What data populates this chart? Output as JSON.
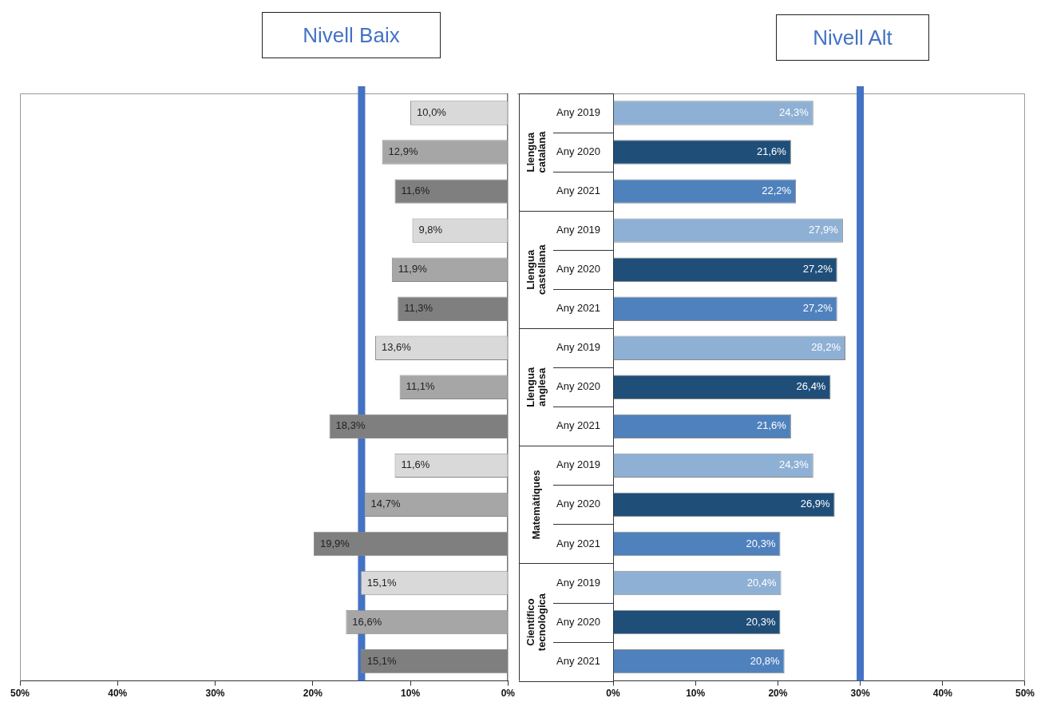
{
  "chart_data": [
    {
      "type": "bar",
      "orientation": "horizontal",
      "title": "Nivell Baix",
      "tick_labels": "x",
      "grid": false,
      "values": [
        10.0,
        12.9,
        11.6,
        9.8,
        11.9,
        11.3,
        13.6,
        11.1,
        18.3,
        11.6,
        14.7,
        19.9,
        15.1,
        16.6,
        15.1
      ],
      "value_labels": [
        "10,0%",
        "12,9%",
        "11,6%",
        "9,8%",
        "11,9%",
        "11,3%",
        "13,6%",
        "11,1%",
        "18,3%",
        "11,6%",
        "14,7%",
        "19,9%",
        "15,1%",
        "16,6%",
        "15,1%"
      ],
      "colors": [
        "#d9d9d9",
        "#a6a6a6",
        "#7f7f7f",
        "#d9d9d9",
        "#a6a6a6",
        "#7f7f7f",
        "#d9d9d9",
        "#a6a6a6",
        "#7f7f7f",
        "#d9d9d9",
        "#a6a6a6",
        "#7f7f7f",
        "#d9d9d9",
        "#a6a6a6",
        "#7f7f7f"
      ],
      "xlim": [
        50,
        0
      ],
      "xticks": [
        {
          "value": 50,
          "label": "50%"
        },
        {
          "value": 40,
          "label": "40%"
        },
        {
          "value": 30,
          "label": "30%"
        },
        {
          "value": 20,
          "label": "20%"
        },
        {
          "value": 10,
          "label": "10%"
        },
        {
          "value": 0,
          "label": "0%"
        }
      ],
      "ref_lines": [
        {
          "axis": "x",
          "value": 15,
          "color": "#4472c4"
        }
      ]
    },
    {
      "type": "bar",
      "orientation": "horizontal",
      "title": "Nivell Alt",
      "grid": false,
      "categories": [
        "Any 2019",
        "Any 2020",
        "Any 2021",
        "Any 2019",
        "Any 2020",
        "Any 2021",
        "Any 2019",
        "Any 2020",
        "Any 2021",
        "Any 2019",
        "Any 2020",
        "Any 2021",
        "Any 2019",
        "Any 2020",
        "Any 2021"
      ],
      "values": [
        24.3,
        21.6,
        22.2,
        27.9,
        27.2,
        27.2,
        28.2,
        26.4,
        21.6,
        24.3,
        26.9,
        20.3,
        20.4,
        20.3,
        20.8
      ],
      "value_labels": [
        "24,3%",
        "21,6%",
        "22,2%",
        "27,9%",
        "27,2%",
        "27,2%",
        "28,2%",
        "26,4%",
        "21,6%",
        "24,3%",
        "26,9%",
        "20,3%",
        "20,4%",
        "20,3%",
        "20,8%"
      ],
      "colors": [
        "#8eb0d4",
        "#1f4e79",
        "#4f81bd",
        "#8eb0d4",
        "#1f4e79",
        "#4f81bd",
        "#8eb0d4",
        "#1f4e79",
        "#4f81bd",
        "#8eb0d4",
        "#1f4e79",
        "#4f81bd",
        "#8eb0d4",
        "#1f4e79",
        "#4f81bd"
      ],
      "xlim": [
        0,
        50
      ],
      "xticks": [
        {
          "value": 0,
          "label": "0%"
        },
        {
          "value": 10,
          "label": "10%"
        },
        {
          "value": 20,
          "label": "20%"
        },
        {
          "value": 30,
          "label": "30%"
        },
        {
          "value": 40,
          "label": "40%"
        },
        {
          "value": 50,
          "label": "50%"
        }
      ],
      "ref_lines": [
        {
          "axis": "x",
          "value": 30,
          "color": "#4472c4"
        }
      ],
      "annotations": [
        "Llengua catalana",
        "Llengua castellana",
        "Llengua anglesa",
        "Matemàtiques",
        "Científico tecnològica"
      ]
    }
  ]
}
